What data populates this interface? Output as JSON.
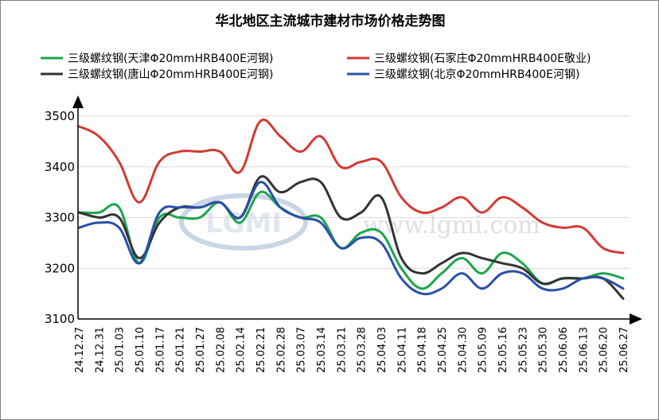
{
  "watermark": {
    "logo_text": "LGMI",
    "site_text": "www.lgmi.com"
  },
  "chart_data": {
    "type": "line",
    "title": "华北地区主流城市建材市场价格走势图",
    "xlabel": "",
    "ylabel": "",
    "ylim": [
      3100,
      3500
    ],
    "yticks": [
      3100,
      3200,
      3300,
      3400,
      3500
    ],
    "grid": true,
    "legend_position": "top",
    "x": [
      "24.12.27",
      "24.12.31",
      "25.01.03",
      "25.01.10",
      "25.01.17",
      "25.01.21",
      "25.01.27",
      "25.02.08",
      "25.02.14",
      "25.02.21",
      "25.02.28",
      "25.03.07",
      "25.03.14",
      "25.03.21",
      "25.03.28",
      "25.04.03",
      "25.04.11",
      "25.04.18",
      "25.04.25",
      "25.04.30",
      "25.05.09",
      "25.05.16",
      "25.05.23",
      "25.05.30",
      "25.06.06",
      "25.06.13",
      "25.06.20",
      "25.06.27"
    ],
    "series": [
      {
        "name": "三级螺纹钢(天津Φ20mmHRB400E河钢)",
        "color": "#1aa54b",
        "values": [
          3310,
          3310,
          3320,
          3210,
          3300,
          3300,
          3300,
          3330,
          3290,
          3350,
          3320,
          3300,
          3300,
          3240,
          3270,
          3270,
          3200,
          3160,
          3190,
          3220,
          3190,
          3230,
          3210,
          3170,
          3180,
          3180,
          3190,
          3180
        ]
      },
      {
        "name": "三级螺纹钢(石家庄Φ20mmHRB400E敬业)",
        "color": "#d23a32",
        "values": [
          3480,
          3460,
          3410,
          3330,
          3410,
          3430,
          3430,
          3430,
          3390,
          3490,
          3460,
          3430,
          3460,
          3400,
          3410,
          3410,
          3340,
          3310,
          3320,
          3340,
          3310,
          3340,
          3320,
          3290,
          3280,
          3280,
          3240,
          3230
        ]
      },
      {
        "name": "三级螺纹钢(唐山Φ20mmHRB400E河钢)",
        "color": "#333333",
        "values": [
          3310,
          3300,
          3300,
          3220,
          3290,
          3320,
          3320,
          3330,
          3300,
          3380,
          3350,
          3370,
          3370,
          3300,
          3310,
          3340,
          3220,
          3190,
          3210,
          3230,
          3220,
          3210,
          3200,
          3170,
          3180,
          3180,
          3180,
          3140
        ]
      },
      {
        "name": "三级螺纹钢(北京Φ20mmHRB400E河钢)",
        "color": "#2b4fa8",
        "values": [
          3280,
          3290,
          3280,
          3210,
          3310,
          3320,
          3320,
          3330,
          3300,
          3370,
          3320,
          3300,
          3290,
          3240,
          3260,
          3250,
          3180,
          3150,
          3160,
          3190,
          3160,
          3190,
          3190,
          3160,
          3160,
          3180,
          3180,
          3160
        ]
      }
    ]
  }
}
